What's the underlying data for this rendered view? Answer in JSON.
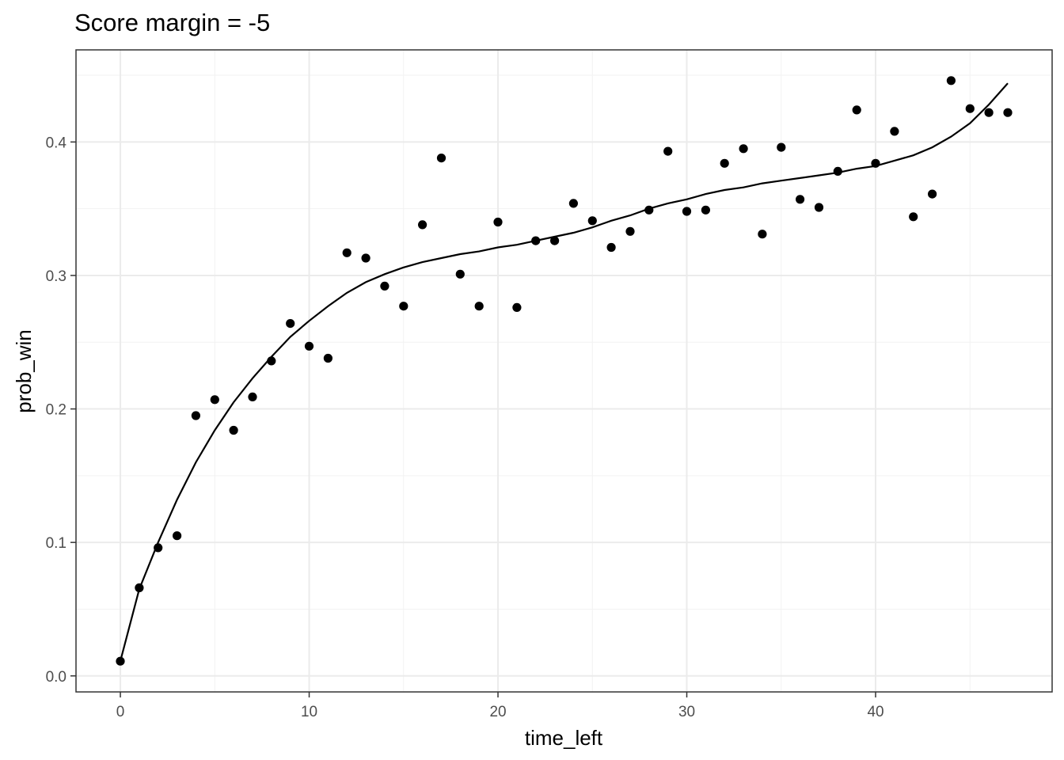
{
  "chart_data": {
    "type": "scatter",
    "title": "Score margin = -5",
    "xlabel": "time_left",
    "ylabel": "prob_win",
    "xlim": [
      -2.35,
      49.35
    ],
    "ylim": [
      -0.012,
      0.469
    ],
    "x_ticks": [
      0,
      10,
      20,
      30,
      40
    ],
    "y_ticks": [
      0.0,
      0.1,
      0.2,
      0.3,
      0.4
    ],
    "x_tick_labels": [
      "0",
      "10",
      "20",
      "30",
      "40"
    ],
    "y_tick_labels": [
      "0.0",
      "0.1",
      "0.2",
      "0.3",
      "0.4"
    ],
    "grid": true,
    "legend": "none",
    "series": [
      {
        "type": "scatter",
        "x": [
          0,
          1,
          2,
          3,
          4,
          5,
          6,
          7,
          8,
          9,
          10,
          11,
          12,
          13,
          14,
          15,
          16,
          17,
          18,
          19,
          20,
          21,
          22,
          23,
          24,
          25,
          26,
          27,
          28,
          29,
          30,
          31,
          32,
          33,
          34,
          35,
          36,
          37,
          38,
          39,
          40,
          41,
          42,
          43,
          44,
          45,
          46,
          47
        ],
        "y": [
          0.011,
          0.066,
          0.096,
          0.105,
          0.195,
          0.207,
          0.184,
          0.209,
          0.236,
          0.264,
          0.247,
          0.238,
          0.317,
          0.313,
          0.292,
          0.277,
          0.338,
          0.388,
          0.301,
          0.277,
          0.34,
          0.276,
          0.326,
          0.326,
          0.354,
          0.341,
          0.321,
          0.333,
          0.349,
          0.393,
          0.348,
          0.349,
          0.384,
          0.395,
          0.331,
          0.396,
          0.357,
          0.351,
          0.378,
          0.424,
          0.384,
          0.408,
          0.344,
          0.361,
          0.446,
          0.425,
          0.422,
          0.422
        ]
      },
      {
        "type": "line",
        "x": [
          0,
          1,
          2,
          3,
          4,
          5,
          6,
          7,
          8,
          9,
          10,
          11,
          12,
          13,
          14,
          15,
          16,
          17,
          18,
          19,
          20,
          21,
          22,
          23,
          24,
          25,
          26,
          27,
          28,
          29,
          30,
          31,
          32,
          33,
          34,
          35,
          36,
          37,
          38,
          39,
          40,
          41,
          42,
          43,
          44,
          45,
          46,
          47
        ],
        "y": [
          0.011,
          0.065,
          0.1,
          0.132,
          0.16,
          0.184,
          0.205,
          0.223,
          0.239,
          0.254,
          0.266,
          0.277,
          0.287,
          0.295,
          0.301,
          0.306,
          0.31,
          0.313,
          0.316,
          0.318,
          0.321,
          0.323,
          0.326,
          0.329,
          0.332,
          0.336,
          0.341,
          0.345,
          0.35,
          0.354,
          0.357,
          0.361,
          0.364,
          0.366,
          0.369,
          0.371,
          0.373,
          0.375,
          0.377,
          0.38,
          0.382,
          0.386,
          0.39,
          0.396,
          0.404,
          0.414,
          0.428,
          0.444
        ]
      }
    ]
  }
}
